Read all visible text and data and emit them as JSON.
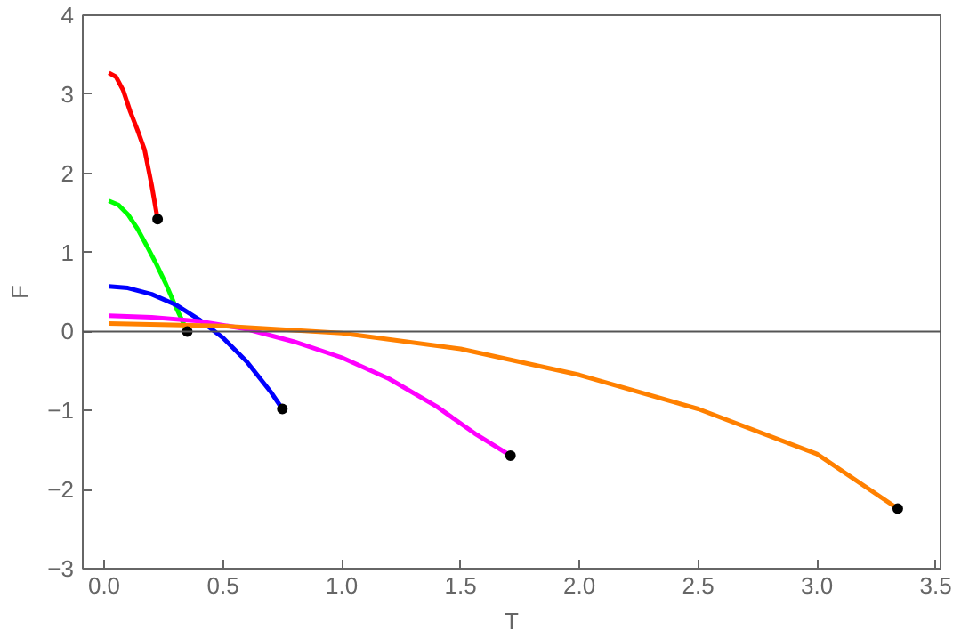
{
  "chart_data": {
    "type": "line",
    "xlabel": "T",
    "ylabel": "F",
    "xlim": [
      -0.09,
      3.52
    ],
    "ylim": [
      -3,
      4
    ],
    "xticks": [
      {
        "value": 0,
        "label": "0.0"
      },
      {
        "value": 0.5,
        "label": "0.5"
      },
      {
        "value": 1,
        "label": "1.0"
      },
      {
        "value": 1.5,
        "label": "1.5"
      },
      {
        "value": 2,
        "label": "2.0"
      },
      {
        "value": 2.5,
        "label": "2.5"
      },
      {
        "value": 3,
        "label": "3.0"
      },
      {
        "value": 3.5,
        "label": "3.5"
      }
    ],
    "yticks": [
      {
        "value": -3,
        "label": "−3"
      },
      {
        "value": -2,
        "label": "−2"
      },
      {
        "value": -1,
        "label": "−1"
      },
      0,
      1,
      2,
      3,
      4
    ],
    "grid": false,
    "marker": "none",
    "line_style": "solid",
    "ref_lines": [
      {
        "axis": "y",
        "value": 0,
        "color": "#555555"
      }
    ],
    "series": [
      {
        "color": "#ff0000",
        "x": [
          0.02,
          0.05,
          0.08,
          0.11,
          0.14,
          0.17,
          0.2,
          0.225
        ],
        "values": [
          3.27,
          3.22,
          3.05,
          2.78,
          2.55,
          2.3,
          1.85,
          1.42
        ]
      },
      {
        "color": "#00ff00",
        "x": [
          0.02,
          0.06,
          0.1,
          0.14,
          0.18,
          0.22,
          0.26,
          0.3,
          0.35
        ],
        "values": [
          1.65,
          1.6,
          1.48,
          1.3,
          1.08,
          0.85,
          0.6,
          0.32,
          0.0
        ]
      },
      {
        "color": "#0000ff",
        "x": [
          0.02,
          0.1,
          0.2,
          0.3,
          0.4,
          0.5,
          0.6,
          0.7,
          0.75
        ],
        "values": [
          0.57,
          0.55,
          0.47,
          0.34,
          0.15,
          -0.08,
          -0.38,
          -0.76,
          -0.98
        ]
      },
      {
        "color": "#ff00ff",
        "x": [
          0.02,
          0.2,
          0.4,
          0.6,
          0.8,
          1.0,
          1.2,
          1.4,
          1.56,
          1.71
        ],
        "values": [
          0.2,
          0.18,
          0.13,
          0.03,
          -0.13,
          -0.33,
          -0.6,
          -0.95,
          -1.29,
          -1.57
        ]
      },
      {
        "color": "#ff8000",
        "x": [
          0.02,
          0.5,
          1.0,
          1.5,
          2.0,
          2.5,
          3.0,
          3.34
        ],
        "values": [
          0.1,
          0.07,
          -0.02,
          -0.22,
          -0.55,
          -0.98,
          -1.55,
          -2.24
        ]
      },
      {
        "type": "scatter",
        "marker": "circle",
        "color": "#000000",
        "x": [
          0.225,
          0.35,
          0.75,
          1.71,
          3.34
        ],
        "values": [
          1.42,
          0.0,
          -0.98,
          -1.57,
          -2.24
        ]
      }
    ]
  }
}
